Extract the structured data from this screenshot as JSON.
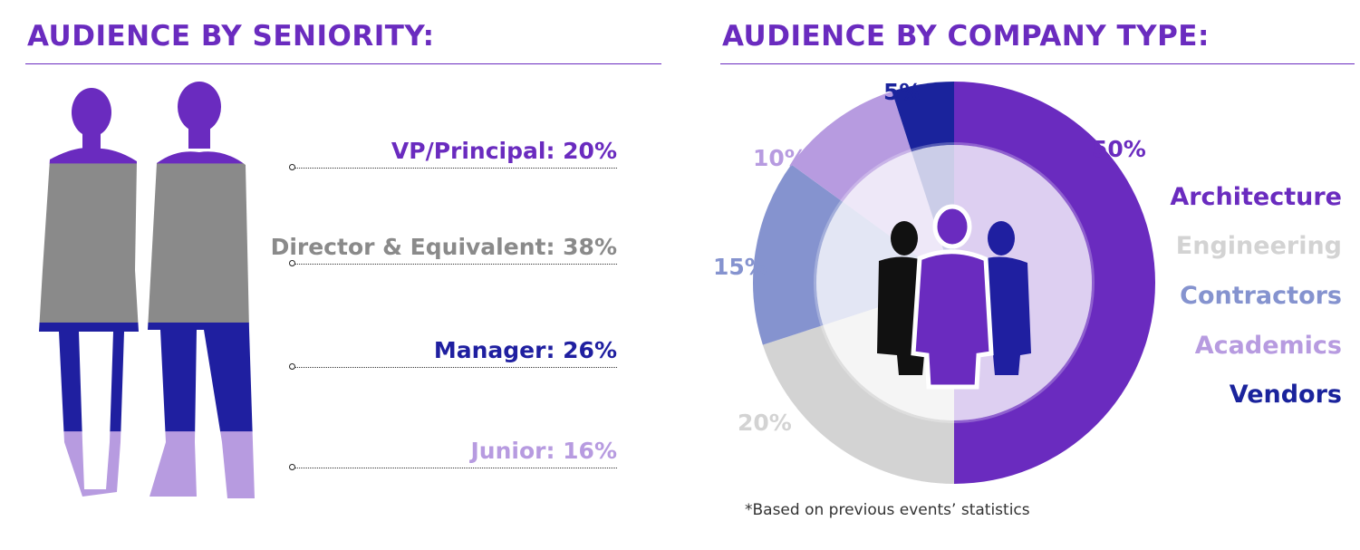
{
  "colors": {
    "title": "#6a2bbf",
    "vp": "#6a2bbf",
    "director": "#8a8a8a",
    "manager": "#1f1fa0",
    "junior": "#b79be0",
    "architecture": "#6a2bbf",
    "engineering": "#d3d3d3",
    "contractors": "#8593cf",
    "academics": "#b79be0",
    "vendors": "#1a239c"
  },
  "chart_data": [
    {
      "type": "bar",
      "title": "AUDIENCE BY SENIORITY:",
      "categories": [
        "VP/Principal",
        "Director & Equivalent",
        "Manager",
        "Junior"
      ],
      "values": [
        20,
        38,
        26,
        16
      ],
      "labels": [
        "VP/Principal: 20%",
        "Director & Equivalent: 38%",
        "Manager: 26%",
        "Junior: 16%"
      ]
    },
    {
      "type": "pie",
      "title": "AUDIENCE BY COMPANY TYPE:",
      "categories": [
        "Architecture",
        "Engineering",
        "Contractors",
        "Academics",
        "Vendors"
      ],
      "values": [
        50,
        20,
        15,
        10,
        5
      ],
      "labels": [
        "50%",
        "20%",
        "15%",
        "10%",
        "5%"
      ]
    }
  ],
  "footnote": "*Based on previous events’ statistics"
}
